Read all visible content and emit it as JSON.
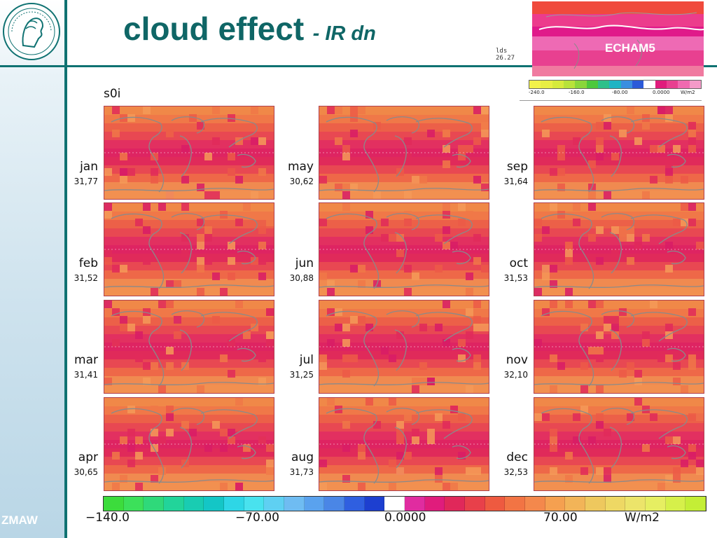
{
  "title": {
    "main": "cloud effect",
    "sub": "- IR dn"
  },
  "brand": {
    "footer_logo": "ZMAW"
  },
  "inset": {
    "label": "ECHAM5",
    "lds_line1": "lds",
    "lds_line2": "26.27",
    "scale_labels": [
      "-240.0",
      "-160.0",
      "-80.00",
      "0.0000",
      "W/m2"
    ]
  },
  "panel_header": "s0i",
  "months": [
    {
      "name": "jan",
      "value": "31,77"
    },
    {
      "name": "feb",
      "value": "31,52"
    },
    {
      "name": "mar",
      "value": "31,41"
    },
    {
      "name": "apr",
      "value": "30,65"
    },
    {
      "name": "may",
      "value": "30,62"
    },
    {
      "name": "jun",
      "value": "30,88"
    },
    {
      "name": "jul",
      "value": "31,25"
    },
    {
      "name": "aug",
      "value": "31,73"
    },
    {
      "name": "sep",
      "value": "31,64"
    },
    {
      "name": "oct",
      "value": "31,53"
    },
    {
      "name": "nov",
      "value": "32,10"
    },
    {
      "name": "dec",
      "value": "32,53"
    }
  ],
  "colorbar": {
    "labels": [
      "−140.0",
      "−70.00",
      "0.0000",
      "70.00",
      "W/m2"
    ],
    "colors": [
      "#3cdc3c",
      "#3ce05a",
      "#2fd97a",
      "#22d49a",
      "#19ccb2",
      "#14c6c6",
      "#2ed6e6",
      "#49e2ee",
      "#5fd0f2",
      "#6fbcf2",
      "#5aa2ee",
      "#4a86e6",
      "#2f5fe0",
      "#1d3fd0",
      "#ffffff",
      "#e02ca0",
      "#e01c7c",
      "#e0285a",
      "#e8404a",
      "#ee5a40",
      "#f27444",
      "#f4884c",
      "#f5a050",
      "#f2b458",
      "#eec85e",
      "#eed864",
      "#ece46a",
      "#e6ee62",
      "#d6f04a",
      "#c4ee36"
    ],
    "color_notes": [
      "green",
      "cyan",
      "blue",
      "magenta",
      "red",
      "orange",
      "yellow",
      "yellow-green"
    ]
  },
  "colors": {
    "accent": "#0f7272",
    "title": "#0f6666",
    "map_land_outline": "#8a8a8a",
    "map_bg_orange": "#f08a50",
    "map_band_red": "#e02a5a"
  }
}
